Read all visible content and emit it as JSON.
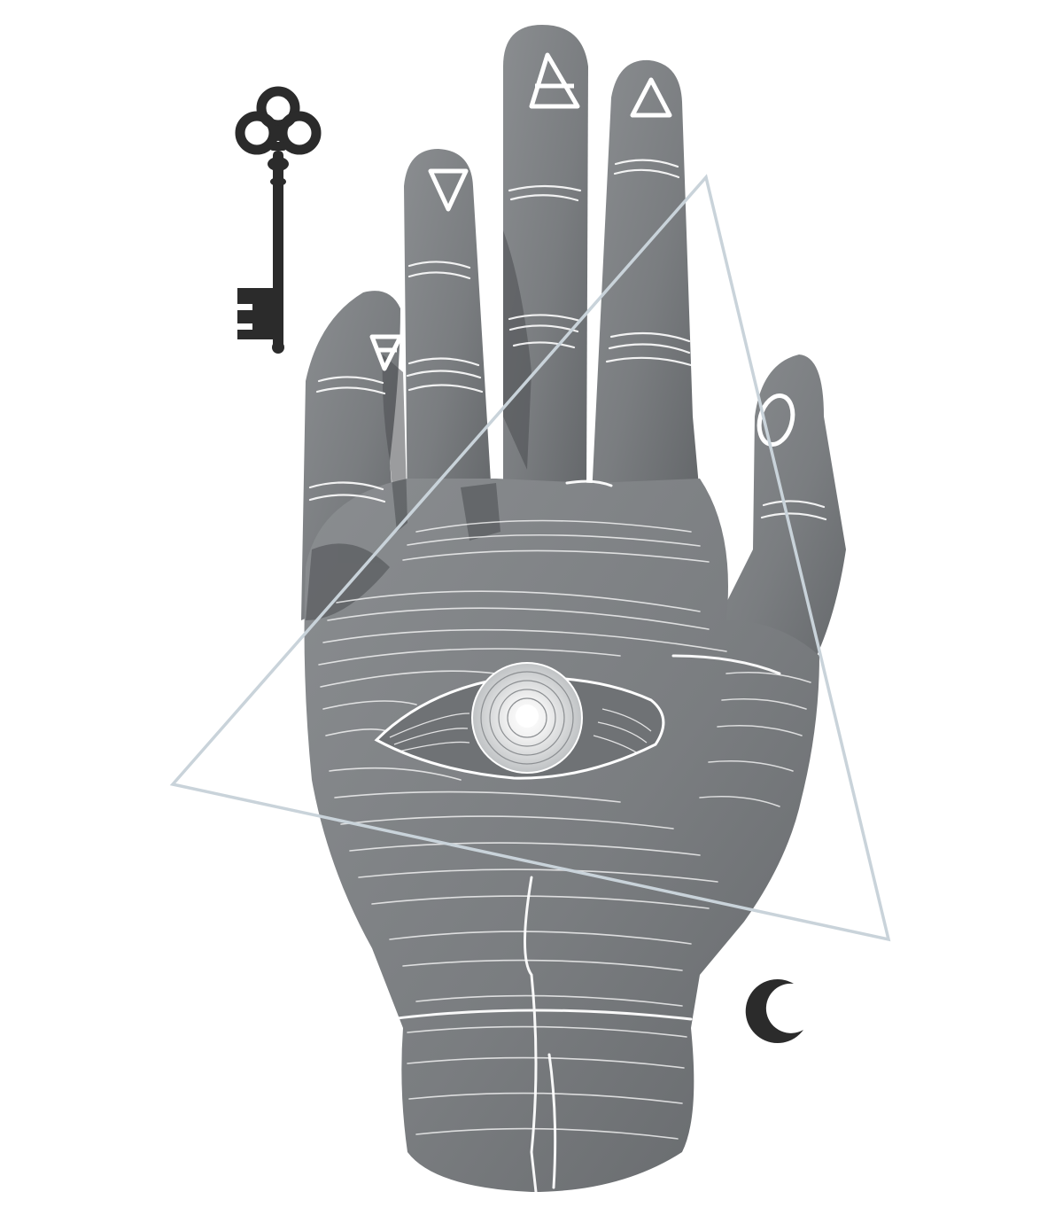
{
  "artwork": {
    "colors": {
      "background": "#ffffff",
      "skin": "#7a7d80",
      "skin_shadow": "#55585b",
      "engraving": "#ffffff",
      "triangle": "#c9d3da",
      "ink": "#2b2b2b"
    },
    "symbols": {
      "key": "skeleton-key-icon",
      "moon": "crescent-moon-icon",
      "eye": "eye-icon",
      "triangle": "triangle-icon"
    }
  }
}
